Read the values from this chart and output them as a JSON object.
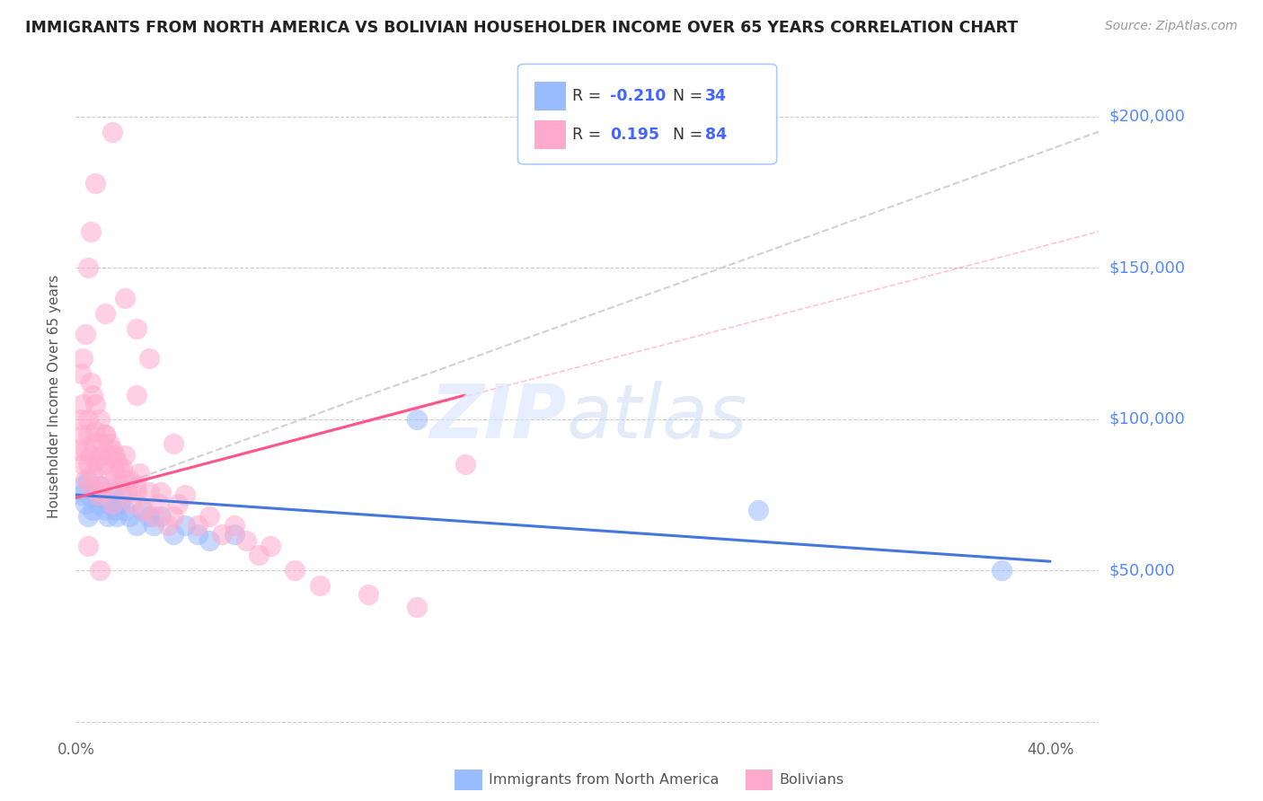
{
  "title": "IMMIGRANTS FROM NORTH AMERICA VS BOLIVIAN HOUSEHOLDER INCOME OVER 65 YEARS CORRELATION CHART",
  "source": "Source: ZipAtlas.com",
  "ylabel": "Householder Income Over 65 years",
  "xlim": [
    0.0,
    0.42
  ],
  "ylim": [
    -5000,
    220000
  ],
  "x_ticks": [
    0.0,
    0.05,
    0.1,
    0.15,
    0.2,
    0.25,
    0.3,
    0.35,
    0.4
  ],
  "y_ticks": [
    0,
    50000,
    100000,
    150000,
    200000
  ],
  "right_y_labels": [
    "",
    "$50,000",
    "$100,000",
    "$150,000",
    "$200,000"
  ],
  "series1_label": "Immigrants from North America",
  "series2_label": "Bolivians",
  "color_blue": "#99bbff",
  "color_blue_line": "#4477dd",
  "color_pink": "#ffaacc",
  "color_pink_line": "#ff5588",
  "watermark_zip": "ZIP",
  "watermark_atlas": "atlas",
  "blue_scatter_x": [
    0.002,
    0.003,
    0.004,
    0.005,
    0.005,
    0.006,
    0.007,
    0.008,
    0.009,
    0.01,
    0.011,
    0.012,
    0.013,
    0.014,
    0.015,
    0.016,
    0.017,
    0.018,
    0.019,
    0.02,
    0.022,
    0.025,
    0.027,
    0.03,
    0.032,
    0.035,
    0.04,
    0.045,
    0.05,
    0.055,
    0.065,
    0.14,
    0.28,
    0.38
  ],
  "blue_scatter_y": [
    75000,
    78000,
    72000,
    80000,
    68000,
    74000,
    70000,
    76000,
    72000,
    78000,
    74000,
    70000,
    68000,
    72000,
    76000,
    70000,
    68000,
    72000,
    74000,
    70000,
    68000,
    65000,
    70000,
    68000,
    65000,
    68000,
    62000,
    65000,
    62000,
    60000,
    62000,
    100000,
    70000,
    50000
  ],
  "pink_scatter_x": [
    0.001,
    0.002,
    0.002,
    0.003,
    0.003,
    0.003,
    0.004,
    0.004,
    0.005,
    0.005,
    0.005,
    0.006,
    0.006,
    0.007,
    0.007,
    0.008,
    0.008,
    0.009,
    0.009,
    0.01,
    0.01,
    0.011,
    0.011,
    0.012,
    0.012,
    0.013,
    0.014,
    0.015,
    0.015,
    0.016,
    0.017,
    0.018,
    0.019,
    0.02,
    0.021,
    0.022,
    0.023,
    0.025,
    0.026,
    0.028,
    0.03,
    0.032,
    0.034,
    0.035,
    0.038,
    0.04,
    0.042,
    0.045,
    0.05,
    0.055,
    0.06,
    0.065,
    0.07,
    0.075,
    0.08,
    0.09,
    0.1,
    0.12,
    0.14,
    0.003,
    0.004,
    0.006,
    0.007,
    0.008,
    0.01,
    0.012,
    0.014,
    0.016,
    0.018,
    0.02,
    0.025,
    0.012,
    0.02,
    0.025,
    0.03,
    0.025,
    0.04,
    0.16,
    0.005,
    0.006,
    0.008,
    0.015,
    0.005,
    0.01
  ],
  "pink_scatter_y": [
    90000,
    100000,
    115000,
    85000,
    95000,
    105000,
    80000,
    90000,
    85000,
    95000,
    100000,
    88000,
    78000,
    82000,
    92000,
    86000,
    96000,
    75000,
    85000,
    88000,
    78000,
    92000,
    76000,
    85000,
    95000,
    80000,
    88000,
    90000,
    72000,
    82000,
    86000,
    78000,
    84000,
    88000,
    76000,
    80000,
    72000,
    78000,
    82000,
    70000,
    76000,
    68000,
    72000,
    76000,
    65000,
    68000,
    72000,
    75000,
    65000,
    68000,
    62000,
    65000,
    60000,
    55000,
    58000,
    50000,
    45000,
    42000,
    38000,
    120000,
    128000,
    112000,
    108000,
    105000,
    100000,
    95000,
    92000,
    88000,
    84000,
    80000,
    76000,
    135000,
    140000,
    130000,
    120000,
    108000,
    92000,
    85000,
    150000,
    162000,
    178000,
    195000,
    58000,
    50000
  ],
  "blue_trend_x": [
    0.0,
    0.4
  ],
  "blue_trend_y": [
    75000,
    53000
  ],
  "pink_trend_x": [
    0.0,
    0.16
  ],
  "pink_trend_y": [
    74000,
    108000
  ],
  "gray_trend_x": [
    0.0,
    0.42
  ],
  "gray_trend_y": [
    73000,
    195000
  ],
  "legend_items": [
    {
      "color": "#99bbff",
      "r_label": "R = ",
      "r_val": "-0.210",
      "n_label": "N = ",
      "n_val": "34"
    },
    {
      "color": "#ffaacc",
      "r_label": "R = ",
      "r_val": "0.195",
      "n_label": "N = ",
      "n_val": "84"
    }
  ]
}
